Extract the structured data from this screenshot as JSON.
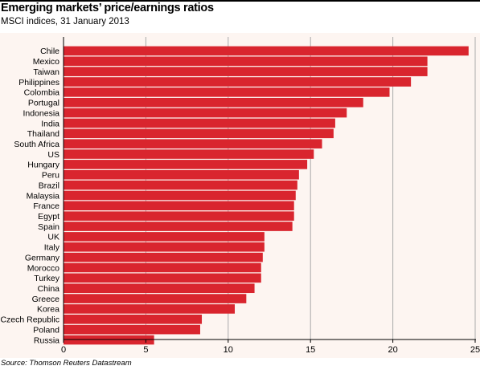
{
  "header": {
    "title": "Emerging markets’ price/earnings ratios",
    "subtitle": "MSCI indices, 31 January 2013"
  },
  "footer": {
    "source": "Source: Thomson Reuters Datastream"
  },
  "colors": {
    "bar": "#d9252e",
    "background": "#fdf5f1",
    "grid": "#aaaaaa"
  },
  "chart_data": {
    "type": "bar",
    "orientation": "horizontal",
    "title": "Emerging markets’ price/earnings ratios",
    "subtitle": "MSCI indices, 31 January 2013",
    "xlabel": "",
    "ylabel": "",
    "xlim": [
      0,
      25
    ],
    "xticks": [
      0,
      5,
      10,
      15,
      20,
      25
    ],
    "grid": "vertical",
    "categories": [
      "Chile",
      "Mexico",
      "Taiwan",
      "Philippines",
      "Colombia",
      "Portugal",
      "Indonesia",
      "India",
      "Thailand",
      "South Africa",
      "US",
      "Hungary",
      "Peru",
      "Brazil",
      "Malaysia",
      "France",
      "Egypt",
      "Spain",
      "UK",
      "Italy",
      "Germany",
      "Morocco",
      "Turkey",
      "China",
      "Greece",
      "Korea",
      "Czech Republic",
      "Poland",
      "Russia"
    ],
    "values": [
      24.6,
      22.1,
      22.1,
      21.1,
      19.8,
      18.2,
      17.2,
      16.5,
      16.4,
      15.7,
      15.2,
      14.8,
      14.3,
      14.2,
      14.1,
      14.0,
      14.0,
      13.9,
      12.2,
      12.2,
      12.1,
      12.0,
      12.0,
      11.6,
      11.1,
      10.4,
      8.4,
      8.3,
      5.5
    ]
  }
}
